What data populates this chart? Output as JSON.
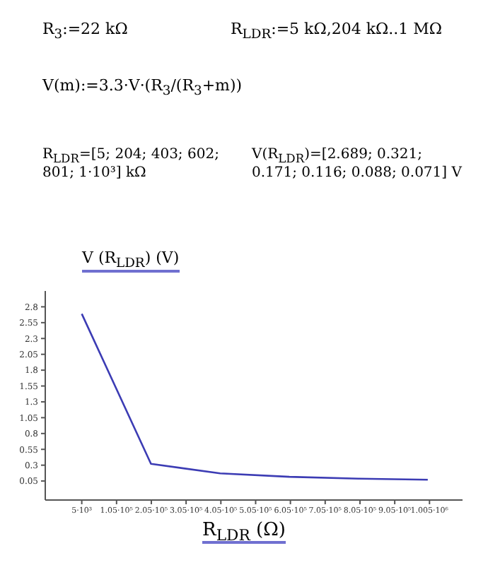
{
  "chart_data": {
    "type": "line",
    "annotations": [
      "R$_{3}$:=22 kΩ",
      "R$_{LDR}$:=5 kΩ,204 kΩ..1 MΩ",
      "V(m):=3.3·V·(R$_{3}$/(R$_{3}$+m))",
      "R$_{LDR}$=[5; 204; 403; 602; 801; 1·10³] kΩ",
      "V(R$_{LDR}$)=[2.689; 0.321; 0.171; 0.116; 0.088; 0.071] V"
    ],
    "ylabel": "V (R$_{LDR}$) (V)",
    "xlabel": "R$_{LDR}$ (Ω)",
    "x": [
      5000,
      204000,
      403000,
      602000,
      801000,
      1000000
    ],
    "series": [
      {
        "color": "#3c3cb4",
        "values": [
          2.689,
          0.321,
          0.171,
          0.116,
          0.088,
          0.071
        ]
      }
    ],
    "xlim": [
      -100000,
      1100000
    ],
    "xticks": [
      {
        "value": 5000,
        "label": "5·10³"
      },
      {
        "value": 105000,
        "label": "1.05·10⁵"
      },
      {
        "value": 205000,
        "label": "2.05·10⁵"
      },
      {
        "value": 305000,
        "label": "3.05·10⁵"
      },
      {
        "value": 405000,
        "label": "4.05·10⁵"
      },
      {
        "value": 505000,
        "label": "5.05·10⁵"
      },
      {
        "value": 605000,
        "label": "6.05·10⁵"
      },
      {
        "value": 705000,
        "label": "7.05·10⁵"
      },
      {
        "value": 805000,
        "label": "8.05·10⁵"
      },
      {
        "value": 905000,
        "label": "9.05·10⁵"
      },
      {
        "value": 1005000,
        "label": "1.005·10⁶"
      }
    ],
    "ylim": [
      -0.25,
      3.05
    ],
    "yticks": [
      0.05,
      0.3,
      0.55,
      0.8,
      1.05,
      1.3,
      1.55,
      1.8,
      2.05,
      2.3,
      2.55,
      2.8
    ],
    "marker": "none",
    "line_style": "solid"
  }
}
